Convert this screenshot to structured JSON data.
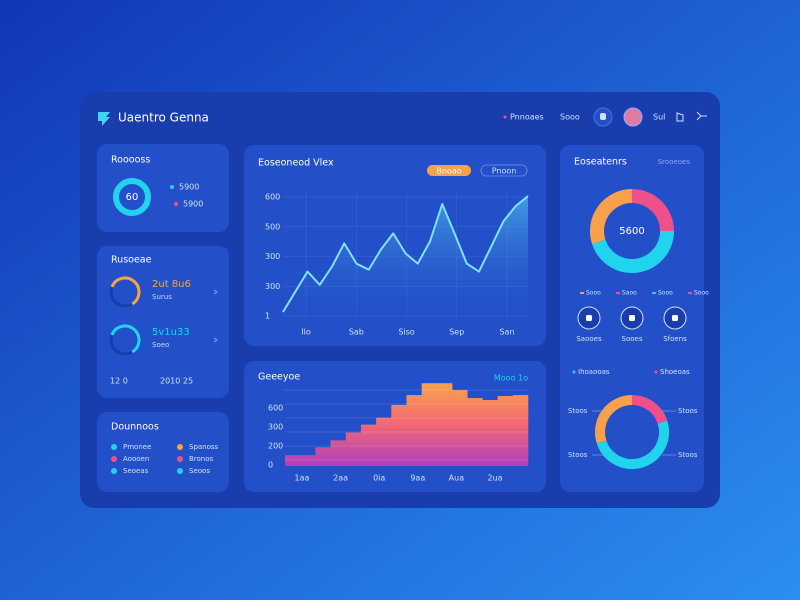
{
  "header": {
    "logo": "Uaentro Genna",
    "nav": [
      "Pnnoaes",
      "Sooo"
    ],
    "user": "Sul"
  },
  "stats_card": {
    "title": "Rooooss",
    "center": "60",
    "items": [
      {
        "label": "5900",
        "color": "#22d3ee"
      },
      {
        "label": "5900",
        "color": "#f0508a"
      }
    ]
  },
  "progress_card": {
    "title": "Rusoeae",
    "items": [
      {
        "value": "2ut 8u6",
        "sub": "Surus",
        "color": "#f7a24b"
      },
      {
        "value": "5v1u33",
        "sub": "Soeo",
        "color": "#22d3ee"
      }
    ],
    "footer": [
      "12 0",
      "2010 25"
    ]
  },
  "legend_card": {
    "title": "Dounnoos",
    "items": [
      {
        "label": "Pmonee",
        "color": "#22d3ee"
      },
      {
        "label": "Aoooen",
        "color": "#f0508a"
      },
      {
        "label": "Seoeas",
        "color": "#22d3ee"
      },
      {
        "label": "Spanoss",
        "color": "#f7a24b"
      },
      {
        "label": "Bronos",
        "color": "#f0508a"
      },
      {
        "label": "Seoos",
        "color": "#22d3ee"
      }
    ]
  },
  "line_card": {
    "title": "Eoseoneod Vlex",
    "toggles": [
      "Bnoao",
      "Pnoon"
    ],
    "y_labels": [
      "600",
      "500",
      "300",
      "300",
      "1"
    ],
    "x_labels": [
      "Ilo",
      "Sab",
      "Siso",
      "Sep",
      "San"
    ],
    "values": [
      30,
      131,
      232,
      166,
      257,
      373,
      272,
      242,
      343,
      423,
      323,
      272,
      383,
      570,
      423,
      272,
      232,
      358,
      484,
      560,
      610
    ],
    "ylim": [
      0,
      640
    ],
    "color": "#7fe3ff"
  },
  "area_card": {
    "title": "Geeeyoe",
    "legend": "Mooo 1o",
    "y_labels": [
      "600",
      "300",
      "200",
      "0"
    ],
    "x_labels": [
      "1aa",
      "2aa",
      "0ia",
      "9aa",
      "Aua",
      "2ua"
    ],
    "values": [
      113,
      113,
      196,
      268,
      350,
      433,
      505,
      639,
      742,
      866,
      866,
      794,
      711,
      691,
      732,
      742
    ],
    "ylim": [
      0,
      900
    ]
  },
  "donut_card": {
    "title": "Eoseatenrs",
    "subtitle": "Srooeoes",
    "center": "5600",
    "segments": [
      {
        "value": 25,
        "color": "#f0508a"
      },
      {
        "value": 45,
        "color": "#22d3ee"
      },
      {
        "value": 30,
        "color": "#f7a24b"
      }
    ],
    "legend": [
      {
        "label": "Sooo",
        "color": "#f7a24b"
      },
      {
        "label": "Saoo",
        "color": "#f0508a"
      },
      {
        "label": "Sooo",
        "color": "#22d3ee"
      },
      {
        "label": "Sooo",
        "color": "#f0508a"
      }
    ],
    "actions": [
      "Saooes",
      "Sooes",
      "Sfoens"
    ],
    "sections": [
      "Ihoaooas",
      "Shoeoas"
    ],
    "small_segments": [
      {
        "value": 20,
        "color": "#f0508a"
      },
      {
        "value": 50,
        "color": "#22d3ee"
      },
      {
        "value": 30,
        "color": "#f7a24b"
      }
    ],
    "small_labels": [
      "Stoos",
      "Stoos",
      "Stoos",
      "Stoos"
    ]
  }
}
